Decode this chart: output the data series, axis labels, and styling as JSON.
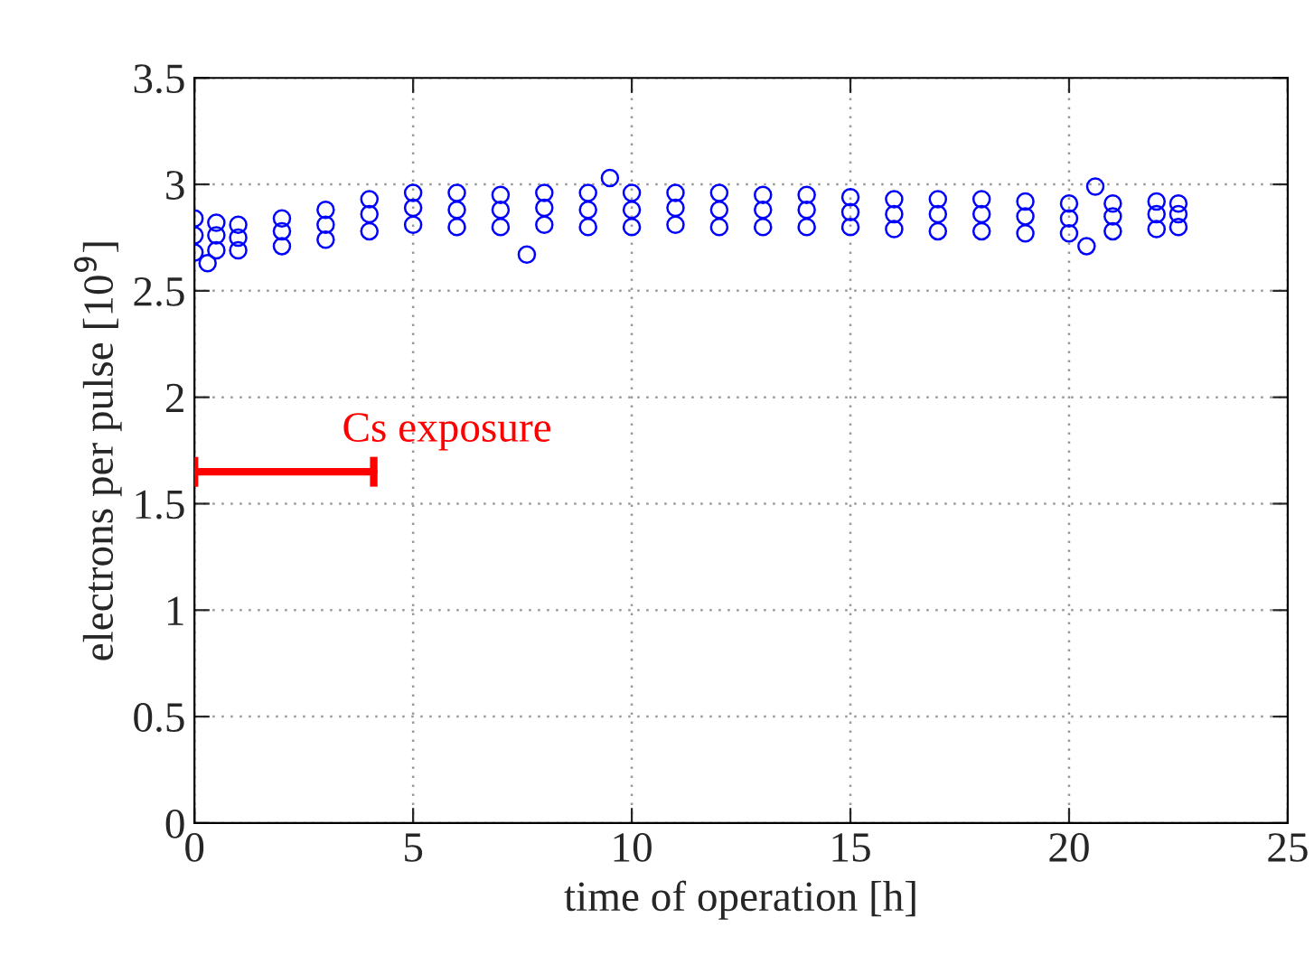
{
  "chart_data": {
    "type": "scatter",
    "xlabel": "time of operation [h]",
    "ylabel": "electrons per pulse [10$^{9}$]",
    "xlim": [
      0,
      25
    ],
    "xticks": [
      0,
      5,
      10,
      15,
      20,
      25
    ],
    "ylim": [
      0,
      3.5
    ],
    "yticks": [
      0,
      0.5,
      1,
      1.5,
      2,
      2.5,
      3,
      3.5
    ],
    "grid": true,
    "series": [
      {
        "color": "#0000ff",
        "marker": "circle",
        "x": [
          0,
          0.5,
          1,
          2,
          3,
          4,
          5,
          6,
          7,
          8,
          9,
          10,
          11,
          12,
          13,
          14,
          15,
          16,
          17,
          18,
          19,
          20,
          21,
          22,
          22.5,
          0,
          0.5,
          1,
          2,
          3,
          4,
          5,
          6,
          7,
          8,
          9,
          10,
          11,
          12,
          13,
          14,
          15,
          16,
          17,
          18,
          19,
          20,
          21,
          22,
          22.5,
          0,
          0.5,
          1,
          2,
          3,
          4,
          5,
          6,
          7,
          8,
          9,
          10,
          11,
          12,
          13,
          14,
          15,
          16,
          17,
          18,
          19,
          20,
          21,
          22,
          22.5,
          0.3,
          7.6,
          9.5,
          20.4,
          20.6
        ],
        "values": [
          2.68,
          2.69,
          2.69,
          2.71,
          2.74,
          2.78,
          2.81,
          2.8,
          2.8,
          2.81,
          2.8,
          2.8,
          2.81,
          2.8,
          2.8,
          2.8,
          2.8,
          2.79,
          2.78,
          2.78,
          2.77,
          2.77,
          2.78,
          2.79,
          2.8,
          2.84,
          2.82,
          2.81,
          2.84,
          2.88,
          2.93,
          2.96,
          2.96,
          2.95,
          2.96,
          2.96,
          2.96,
          2.96,
          2.96,
          2.95,
          2.95,
          2.94,
          2.93,
          2.93,
          2.93,
          2.92,
          2.91,
          2.91,
          2.92,
          2.91,
          2.76,
          2.76,
          2.75,
          2.78,
          2.81,
          2.86,
          2.89,
          2.88,
          2.88,
          2.89,
          2.88,
          2.88,
          2.89,
          2.88,
          2.88,
          2.88,
          2.87,
          2.86,
          2.86,
          2.86,
          2.85,
          2.84,
          2.85,
          2.86,
          2.86,
          2.63,
          2.67,
          3.03,
          2.71,
          2.99
        ]
      },
      {
        "type": "line",
        "marker": "none",
        "color": "#ff0000",
        "x": [
          0,
          4.1
        ],
        "values": [
          1.65,
          1.65
        ]
      }
    ],
    "annotations": [
      "Cs exposure"
    ]
  }
}
